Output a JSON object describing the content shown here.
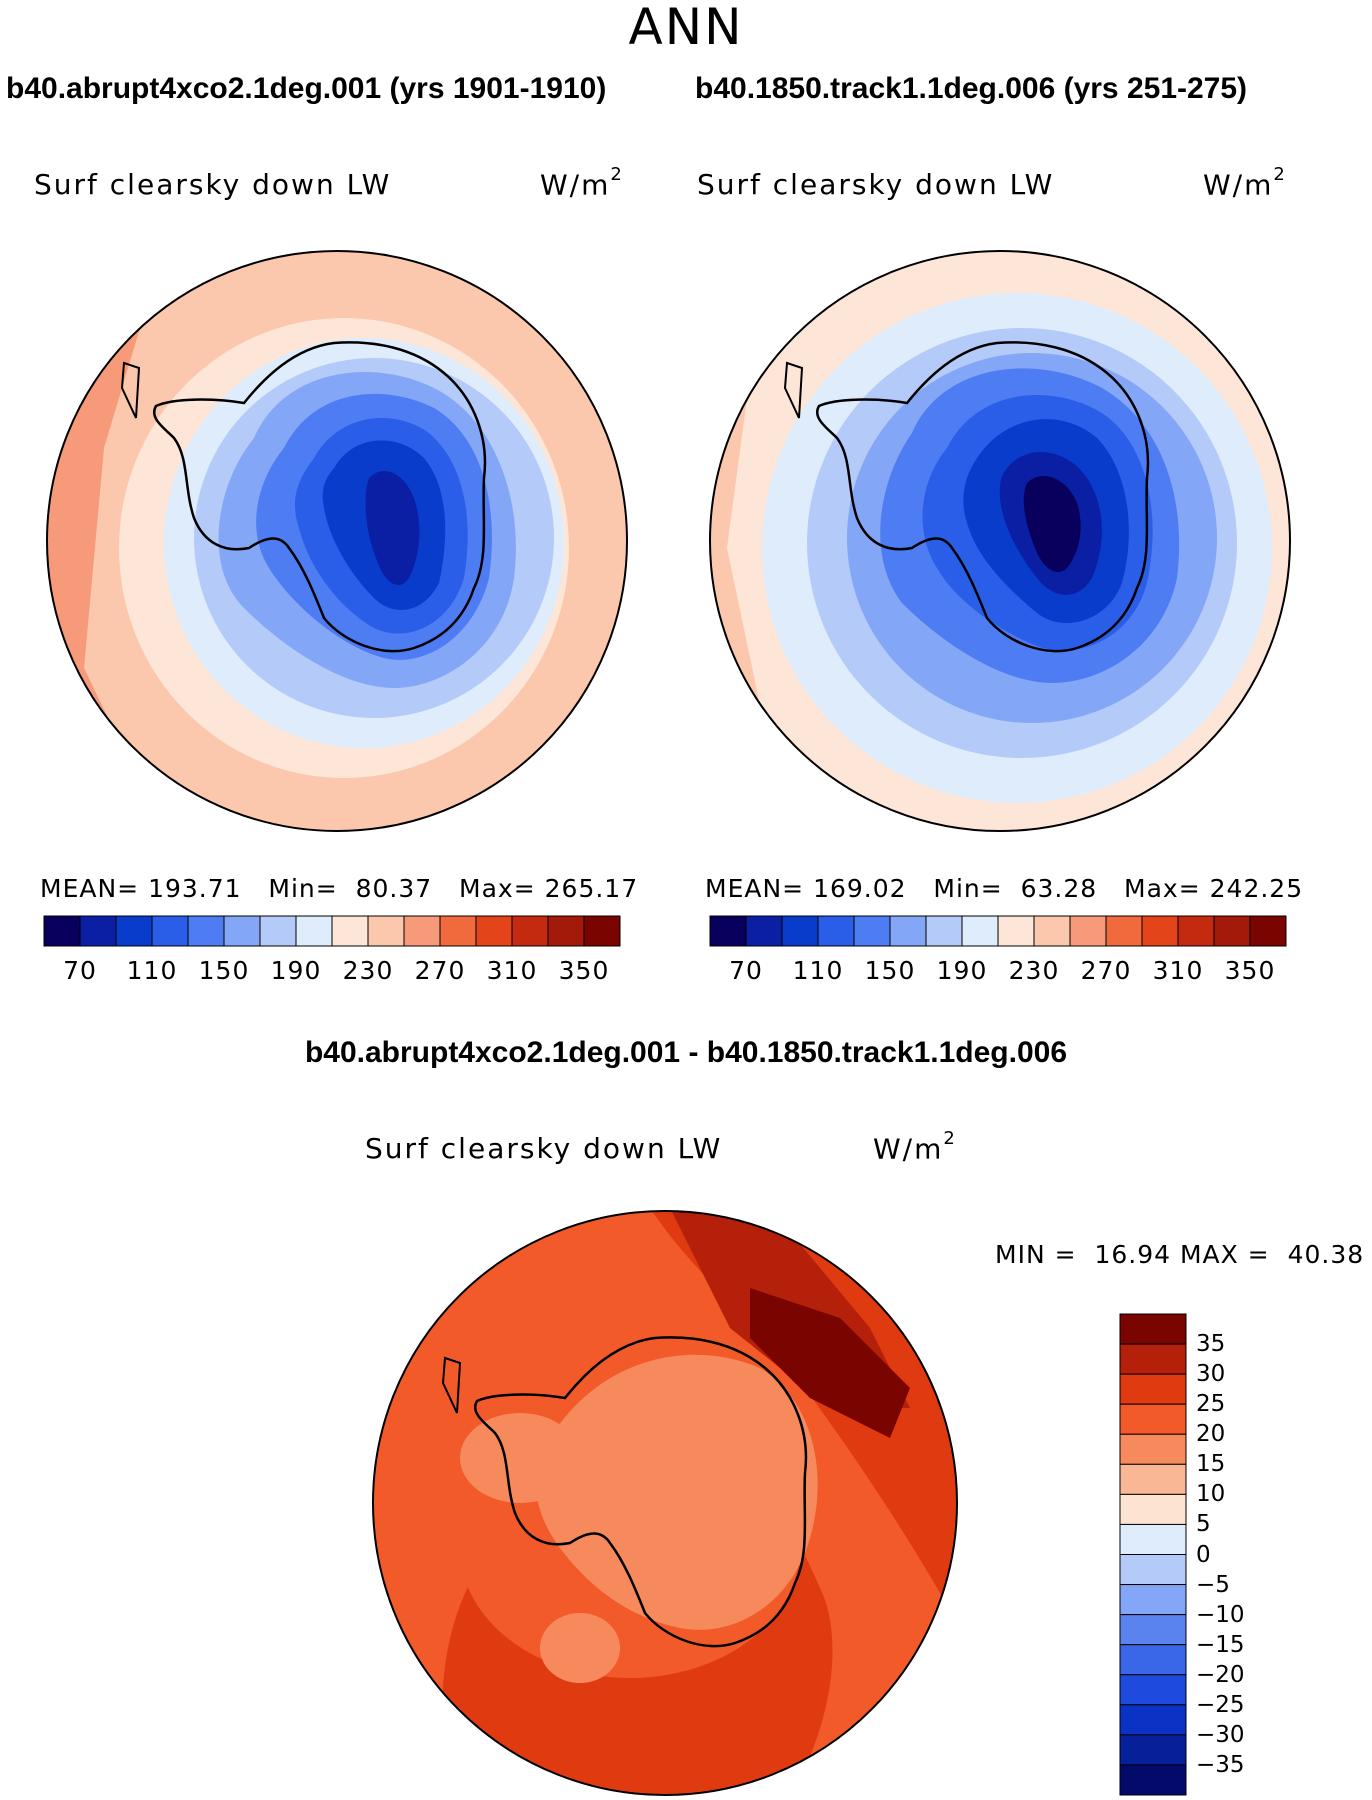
{
  "figure": {
    "title": "ANN",
    "diff_title": "b40.abrupt4xco2.1deg.001 - b40.1850.track1.1deg.006"
  },
  "panels": [
    {
      "case_title": "b40.abrupt4xco2.1deg.001 (yrs 1901-1910)",
      "field_label": "Surf clearsky down LW",
      "units": "W/m",
      "units_sup": "2",
      "mean_label": "MEAN=",
      "mean": "193.71",
      "min_label": "Min=",
      "min": "80.37",
      "max_label": "Max=",
      "max": "265.17"
    },
    {
      "case_title": "b40.1850.track1.1deg.006 (yrs 251-275)",
      "field_label": "Surf clearsky down LW",
      "units": "W/m",
      "units_sup": "2",
      "mean_label": "MEAN=",
      "mean": "169.02",
      "min_label": "Min=",
      "min": "63.28",
      "max_label": "Max=",
      "max": "242.25"
    }
  ],
  "diff_panel": {
    "field_label": "Surf clearsky down LW",
    "units": "W/m",
    "units_sup": "2",
    "min_label": "MIN =",
    "min": "16.94",
    "max_label": "MAX =",
    "max": "40.38"
  },
  "colorbar_abs": {
    "colors": [
      "#08005c",
      "#0a1fa3",
      "#0a3ccc",
      "#2a5ee8",
      "#4e7cf2",
      "#84a6f7",
      "#b4caf9",
      "#deecfb",
      "#fde6d8",
      "#fbc7ad",
      "#f79a7a",
      "#f06a3e",
      "#e34419",
      "#c42a10",
      "#a31a0a",
      "#7a0400"
    ],
    "tick_labels": [
      "70",
      "110",
      "150",
      "190",
      "230",
      "270",
      "310",
      "350"
    ]
  },
  "colorbar_diff": {
    "colors": [
      "#7a0400",
      "#b5200a",
      "#e03a10",
      "#f25a2a",
      "#f68a5d",
      "#f9b795",
      "#fde3d2",
      "#deecfb",
      "#b4caf9",
      "#84a6f7",
      "#5b83f0",
      "#3a66e8",
      "#1e4bde",
      "#0a32c4",
      "#06209a",
      "#030a6a"
    ],
    "tick_labels": [
      "35",
      "30",
      "25",
      "20",
      "15",
      "10",
      "5",
      "0",
      "−5",
      "−10",
      "−15",
      "−20",
      "−25",
      "−30",
      "−35"
    ]
  }
}
